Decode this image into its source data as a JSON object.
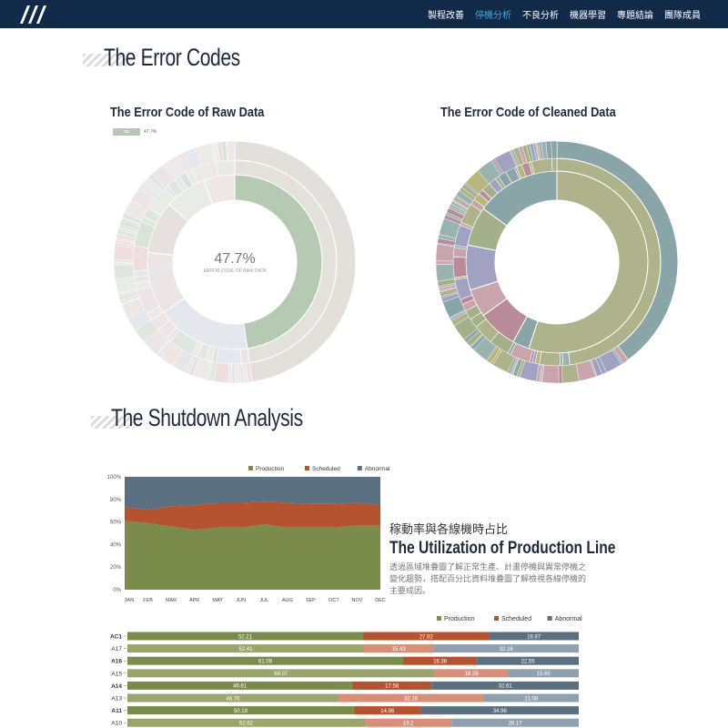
{
  "nav": {
    "logo_name": "slash-logo",
    "items": [
      {
        "label": "製程改善",
        "active": false
      },
      {
        "label": "停機分析",
        "active": true
      },
      {
        "label": "不良分析",
        "active": false
      },
      {
        "label": "機器學習",
        "active": false
      },
      {
        "label": "專題結論",
        "active": false
      },
      {
        "label": "團隊成員",
        "active": false
      }
    ]
  },
  "sections": {
    "error_codes": "The Error Codes",
    "shutdown": "The Shutdown Analysis"
  },
  "raw_chart": {
    "title": "The Error Code of Raw Data",
    "legend_label": "na",
    "legend_value": "47.7%",
    "center_value": "47.7%",
    "center_label": "ERROR CODE OF RAW DATA"
  },
  "cleaned_chart": {
    "title": "The Error Code of Cleaned Data"
  },
  "utilization": {
    "subtitle": "稼動率與各線機時占比",
    "title": "The Utilization of Production Line",
    "description": "透過區域堆疊圖了解正常生產、計畫停機與異常停機之變化趨勢，搭配百分比資料堆疊圖了解檢視各線停機的主要成因。"
  },
  "colors": {
    "production": "#7b8b4c",
    "scheduled": "#b5522f",
    "abnormal": "#5a6f80",
    "nav_bg": "#102a48",
    "nav_active": "#4aa3df"
  },
  "chart_data": [
    {
      "type": "area",
      "stacked_percent": true,
      "categories": [
        "JAN",
        "FEB",
        "MAR",
        "APR",
        "MAY",
        "JUN",
        "JUL",
        "AUG",
        "SEP",
        "OCT",
        "NOV",
        "DEC"
      ],
      "ylim": [
        0,
        100
      ],
      "yticks": [
        "0%",
        "20%",
        "40%",
        "60%",
        "80%",
        "100%"
      ],
      "legend": "top-right",
      "series": [
        {
          "name": "Production",
          "values": [
            61,
            59,
            56,
            53,
            55,
            55,
            58,
            55,
            55,
            55,
            57,
            57
          ]
        },
        {
          "name": "Scheduled",
          "values": [
            12,
            12,
            18,
            22,
            22,
            22,
            20,
            22,
            21,
            21,
            20,
            18
          ]
        },
        {
          "name": "Abnormal",
          "values": [
            27,
            29,
            26,
            25,
            23,
            23,
            22,
            23,
            24,
            24,
            23,
            25
          ]
        }
      ]
    },
    {
      "type": "bar",
      "orientation": "horizontal",
      "stacked_percent": true,
      "legend": "top-right",
      "categories": [
        "AC1",
        "A17",
        "A16",
        "A15",
        "A14",
        "A13",
        "A11",
        "A10"
      ],
      "series": [
        {
          "name": "Production",
          "values": [
            52.21,
            52.41,
            61.09,
            68.07,
            49.81,
            46.76,
            50.18,
            52.62
          ]
        },
        {
          "name": "Scheduled",
          "values": [
            27.92,
            15.43,
            16.36,
            16.29,
            17.58,
            32.16,
            14.86,
            19.2
          ]
        },
        {
          "name": "Abnormal",
          "values": [
            19.87,
            32.16,
            22.55,
            15.65,
            32.61,
            21.08,
            34.96,
            28.17
          ]
        }
      ]
    },
    {
      "type": "sunburst",
      "title": "The Error Code of Raw Data",
      "highlight": {
        "label": "na",
        "percent": 47.7
      }
    },
    {
      "type": "sunburst",
      "title": "The Error Code of Cleaned Data"
    }
  ]
}
